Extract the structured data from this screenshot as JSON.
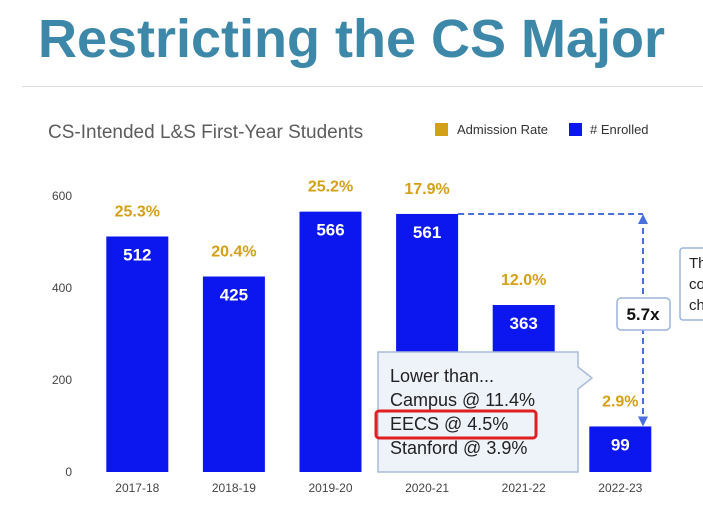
{
  "slide_title": "Restricting the CS Major",
  "chart_data": {
    "type": "bar",
    "title": "CS-Intended L&S First-Year Students",
    "categories": [
      "2017-18",
      "2018-19",
      "2019-20",
      "2020-21",
      "2021-22",
      "2022-23"
    ],
    "series": [
      {
        "name": "# Enrolled",
        "values": [
          512,
          425,
          566,
          561,
          363,
          99
        ],
        "color": "#0b17ee"
      }
    ],
    "annotations_rate": {
      "name": "Admission Rate",
      "labels": [
        "25.3%",
        "20.4%",
        "25.2%",
        "17.9%",
        "12.0%",
        "2.9%"
      ],
      "color": "#d4a017"
    },
    "ylim": [
      0,
      600
    ],
    "yticks": [
      0,
      200,
      400,
      600
    ],
    "grid": false,
    "legend_position": "top-right",
    "ratio_label": "5.7x",
    "callout": {
      "lines": [
        "Lower than...",
        "Campus @ 11.4%",
        "EECS @ 4.5%",
        "Stanford @ 3.9%"
      ],
      "highlighted_line": "EECS @ 4.5%",
      "highlight_color": "#e02020"
    },
    "side_note_fragments": [
      "Th",
      "co",
      "ch"
    ]
  }
}
